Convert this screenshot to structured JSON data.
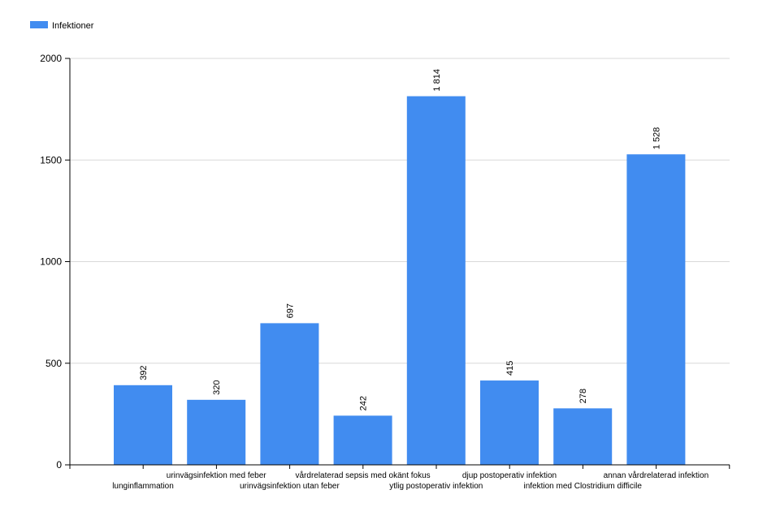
{
  "chart_data": {
    "type": "bar",
    "legend": {
      "position": "top-left",
      "entries": [
        "Infektioner"
      ]
    },
    "categories": [
      "lunginflammation",
      "urinvägsinfektion med feber",
      "urinvägsinfektion utan feber",
      "vårdrelaterad sepsis med okänt fokus",
      "ytlig postoperativ infektion",
      "djup postoperativ infektion",
      "infektion med Clostridium difficile",
      "annan vårdrelaterad infektion"
    ],
    "series": [
      {
        "name": "Infektioner",
        "color": "#418cf0",
        "values": [
          392,
          320,
          697,
          242,
          1814,
          415,
          278,
          1528
        ]
      }
    ],
    "data_labels": [
      "392",
      "320",
      "697",
      "242",
      "1 814",
      "415",
      "278",
      "1 528"
    ],
    "ylim": [
      0,
      2000
    ],
    "yticks": [
      0,
      500,
      1000,
      1500,
      2000
    ],
    "grid": true,
    "title": "",
    "xlabel": "",
    "ylabel": ""
  }
}
